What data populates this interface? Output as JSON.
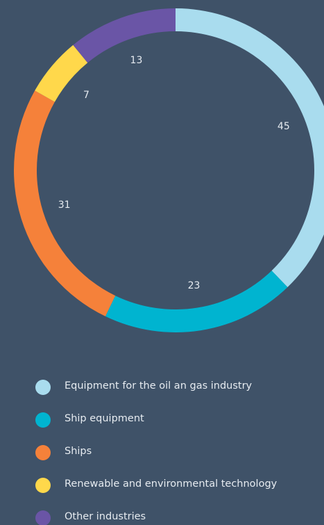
{
  "chart_data": {
    "type": "donut",
    "categories": [
      "Equipment for the oil an gas industry",
      "Ship equipment",
      "Ships",
      "Renewable and environmental technology",
      "Other industries"
    ],
    "values": [
      45,
      23,
      31,
      7,
      13
    ],
    "colors": [
      "#a9dcee",
      "#00b4d0",
      "#f5813a",
      "#ffd84b",
      "#6a55a6"
    ]
  }
}
